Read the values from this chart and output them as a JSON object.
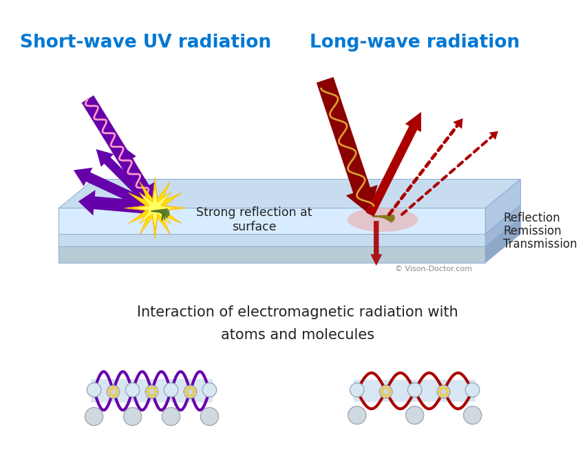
{
  "title_left": "Short-wave UV radiation",
  "title_right": "Long-wave radiation",
  "title_color": "#0078D4",
  "title_fontsize": 19,
  "bg_color": "#FFFFFF",
  "text_strong_reflection": "Strong reflection at\nsurface",
  "text_reflection": "Reflection",
  "text_remission": "Remission",
  "text_transmission": "Transmission",
  "text_interaction": "Interaction of electromagnetic radiation with\natoms and molecules",
  "text_copyright": "© Vison-Doctor.com",
  "purple_color": "#6600AA",
  "red_color": "#AA0000",
  "dark_red": "#8B0000",
  "yellow_color": "#FFE000",
  "pink_wave": "#FF99CC",
  "gold_wave": "#D4A030"
}
